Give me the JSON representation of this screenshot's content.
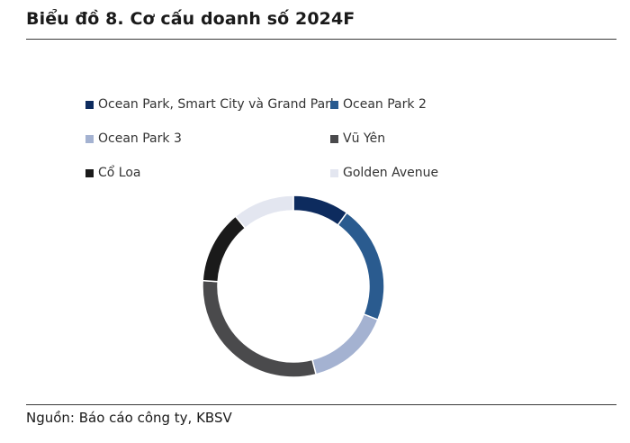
{
  "header": {
    "title": "Biểu đồ 8. Cơ cấu doanh số 2024F"
  },
  "chart_data": {
    "type": "pie",
    "style": "donut",
    "title": "Biểu đồ 8. Cơ cấu doanh số 2024F",
    "legend_position": "top",
    "slices": [
      {
        "label": "Ocean Park, Smart City và Grand Park",
        "value": 10,
        "color": "#0d2b5e"
      },
      {
        "label": "Ocean Park 2",
        "value": 21,
        "color": "#2a5b8f"
      },
      {
        "label": "Ocean Park 3",
        "value": 15,
        "color": "#a4b2d1"
      },
      {
        "label": "Vũ Yên",
        "value": 30,
        "color": "#4a4a4c"
      },
      {
        "label": "Cổ Loa",
        "value": 13,
        "color": "#1a1a1a"
      },
      {
        "label": "Golden Avenue",
        "value": 11,
        "color": "#e3e6f0"
      }
    ]
  },
  "footer": {
    "source": "Nguồn: Báo cáo công ty, KBSV"
  }
}
